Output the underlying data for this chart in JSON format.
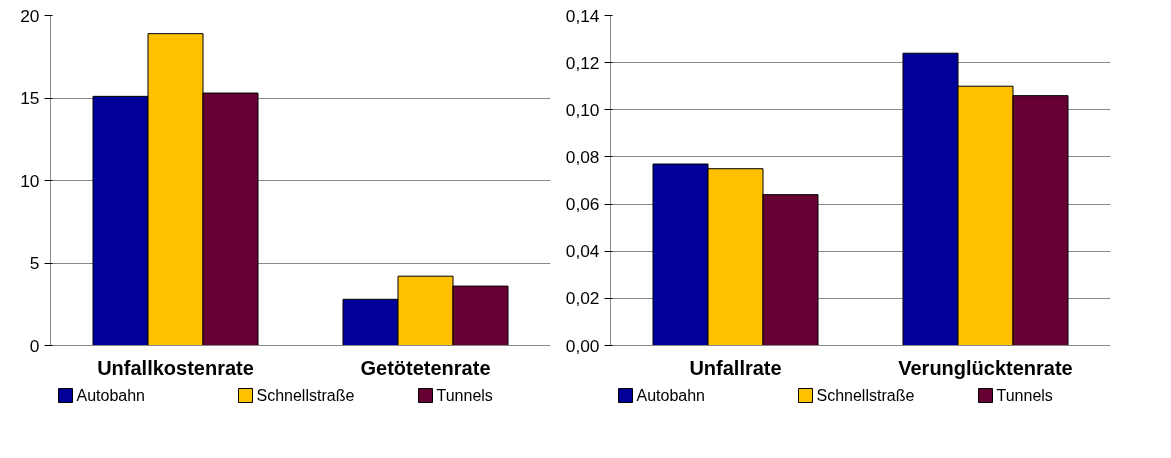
{
  "chart_data": [
    {
      "type": "bar",
      "categories": [
        "Unfallkostenrate",
        "Getötetenrate"
      ],
      "series": [
        {
          "name": "Autobahn",
          "color": "#000099",
          "values": [
            15.1,
            2.8
          ]
        },
        {
          "name": "Schnellstraße",
          "color": "#ffc000",
          "values": [
            18.9,
            4.2
          ]
        },
        {
          "name": "Tunnels",
          "color": "#660033",
          "values": [
            15.3,
            3.6
          ]
        }
      ],
      "ylim": [
        0,
        20
      ],
      "yticks": [
        0,
        5,
        10,
        15,
        20
      ],
      "grid": "y",
      "legend": "bottom"
    },
    {
      "type": "bar",
      "categories": [
        "Unfallrate",
        "Verunglücktenrate"
      ],
      "series": [
        {
          "name": "Autobahn",
          "color": "#000099",
          "values": [
            0.077,
            0.124
          ]
        },
        {
          "name": "Schnellstraße",
          "color": "#ffc000",
          "values": [
            0.075,
            0.11
          ]
        },
        {
          "name": "Tunnels",
          "color": "#660033",
          "values": [
            0.064,
            0.106
          ]
        }
      ],
      "ylim": [
        0,
        0.14
      ],
      "yticks": [
        {
          "value": 0,
          "label": "0,00"
        },
        {
          "value": 0.02,
          "label": "0,02"
        },
        {
          "value": 0.04,
          "label": "0,04"
        },
        {
          "value": 0.06,
          "label": "0,06"
        },
        {
          "value": 0.08,
          "label": "0,08"
        },
        {
          "value": 0.1,
          "label": "0,10"
        },
        {
          "value": 0.12,
          "label": "0,12"
        },
        {
          "value": 0.14,
          "label": "0,14"
        }
      ],
      "grid": "y",
      "legend": "bottom"
    }
  ]
}
